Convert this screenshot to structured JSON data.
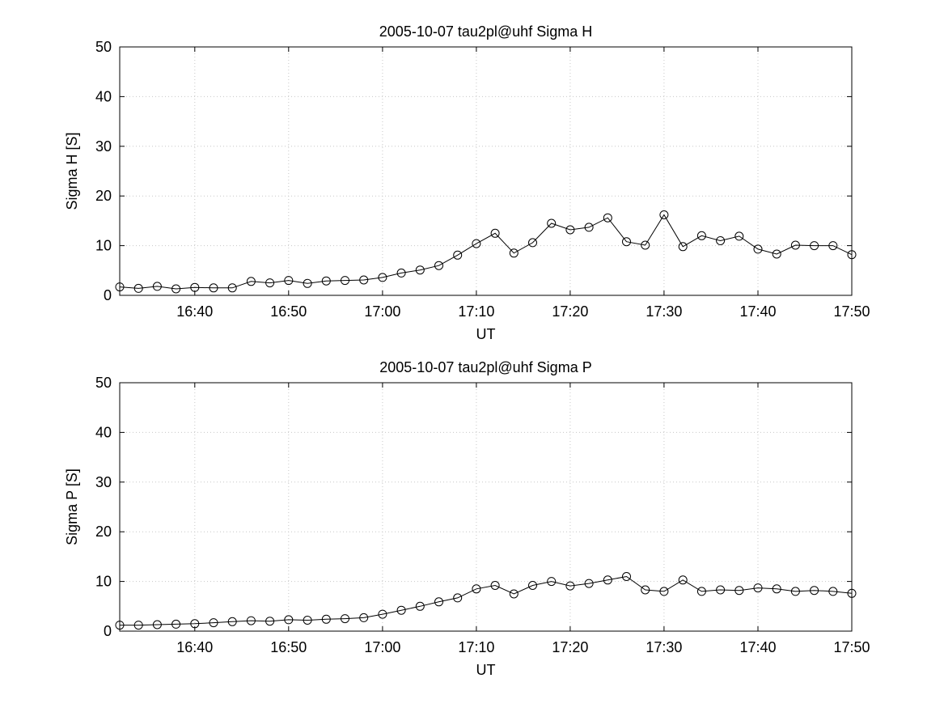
{
  "figure": {
    "background": "#ffffff",
    "line_color": "#000000",
    "grid_color": "#c7c7c7",
    "axis_color": "#000000",
    "text_color": "#000000"
  },
  "chart_data": [
    {
      "type": "line",
      "title": "2005-10-07  tau2pl@uhf Sigma H",
      "xlabel": "UT",
      "ylabel": "Sigma H [S]",
      "ylim": [
        0,
        50
      ],
      "yticks": [
        0,
        10,
        20,
        30,
        40,
        50
      ],
      "xlim": [
        "16:32",
        "17:50"
      ],
      "xticks": [
        "16:40",
        "16:50",
        "17:00",
        "17:10",
        "17:20",
        "17:30",
        "17:40",
        "17:50"
      ],
      "grid": true,
      "legend": null,
      "marker": "circle",
      "x_times": [
        "16:32",
        "16:34",
        "16:36",
        "16:38",
        "16:40",
        "16:42",
        "16:44",
        "16:46",
        "16:48",
        "16:50",
        "16:52",
        "16:54",
        "16:56",
        "16:58",
        "17:00",
        "17:02",
        "17:04",
        "17:06",
        "17:08",
        "17:10",
        "17:12",
        "17:14",
        "17:16",
        "17:18",
        "17:20",
        "17:22",
        "17:24",
        "17:26",
        "17:28",
        "17:30",
        "17:32",
        "17:34",
        "17:36",
        "17:38",
        "17:40",
        "17:42",
        "17:44",
        "17:46",
        "17:48",
        "17:50"
      ],
      "values": [
        1.7,
        1.4,
        1.8,
        1.3,
        1.6,
        1.5,
        1.5,
        2.8,
        2.5,
        3.0,
        2.4,
        2.9,
        3.0,
        3.1,
        3.6,
        4.5,
        5.1,
        6.0,
        8.1,
        10.4,
        12.5,
        8.5,
        10.6,
        14.5,
        13.2,
        13.7,
        15.6,
        10.8,
        10.1,
        16.2,
        9.8,
        12.0,
        11.0,
        11.9,
        9.3,
        8.3,
        10.1,
        10.0,
        10.0,
        8.2
      ]
    },
    {
      "type": "line",
      "title": "2005-10-07  tau2pl@uhf Sigma P",
      "xlabel": "UT",
      "ylabel": "Sigma P [S]",
      "ylim": [
        0,
        50
      ],
      "yticks": [
        0,
        10,
        20,
        30,
        40,
        50
      ],
      "xlim": [
        "16:32",
        "17:50"
      ],
      "xticks": [
        "16:40",
        "16:50",
        "17:00",
        "17:10",
        "17:20",
        "17:30",
        "17:40",
        "17:50"
      ],
      "grid": true,
      "legend": null,
      "marker": "circle",
      "x_times": [
        "16:32",
        "16:34",
        "16:36",
        "16:38",
        "16:40",
        "16:42",
        "16:44",
        "16:46",
        "16:48",
        "16:50",
        "16:52",
        "16:54",
        "16:56",
        "16:58",
        "17:00",
        "17:02",
        "17:04",
        "17:06",
        "17:08",
        "17:10",
        "17:12",
        "17:14",
        "17:16",
        "17:18",
        "17:20",
        "17:22",
        "17:24",
        "17:26",
        "17:28",
        "17:30",
        "17:32",
        "17:34",
        "17:36",
        "17:38",
        "17:40",
        "17:42",
        "17:44",
        "17:46",
        "17:48",
        "17:50"
      ],
      "values": [
        1.2,
        1.2,
        1.3,
        1.4,
        1.5,
        1.7,
        1.9,
        2.1,
        2.0,
        2.3,
        2.2,
        2.4,
        2.5,
        2.7,
        3.4,
        4.2,
        5.0,
        5.9,
        6.7,
        8.5,
        9.2,
        7.5,
        9.2,
        10.0,
        9.1,
        9.6,
        10.3,
        11.0,
        8.3,
        8.0,
        10.3,
        8.0,
        8.3,
        8.2,
        8.7,
        8.5,
        8.0,
        8.2,
        8.0,
        7.6
      ]
    }
  ]
}
